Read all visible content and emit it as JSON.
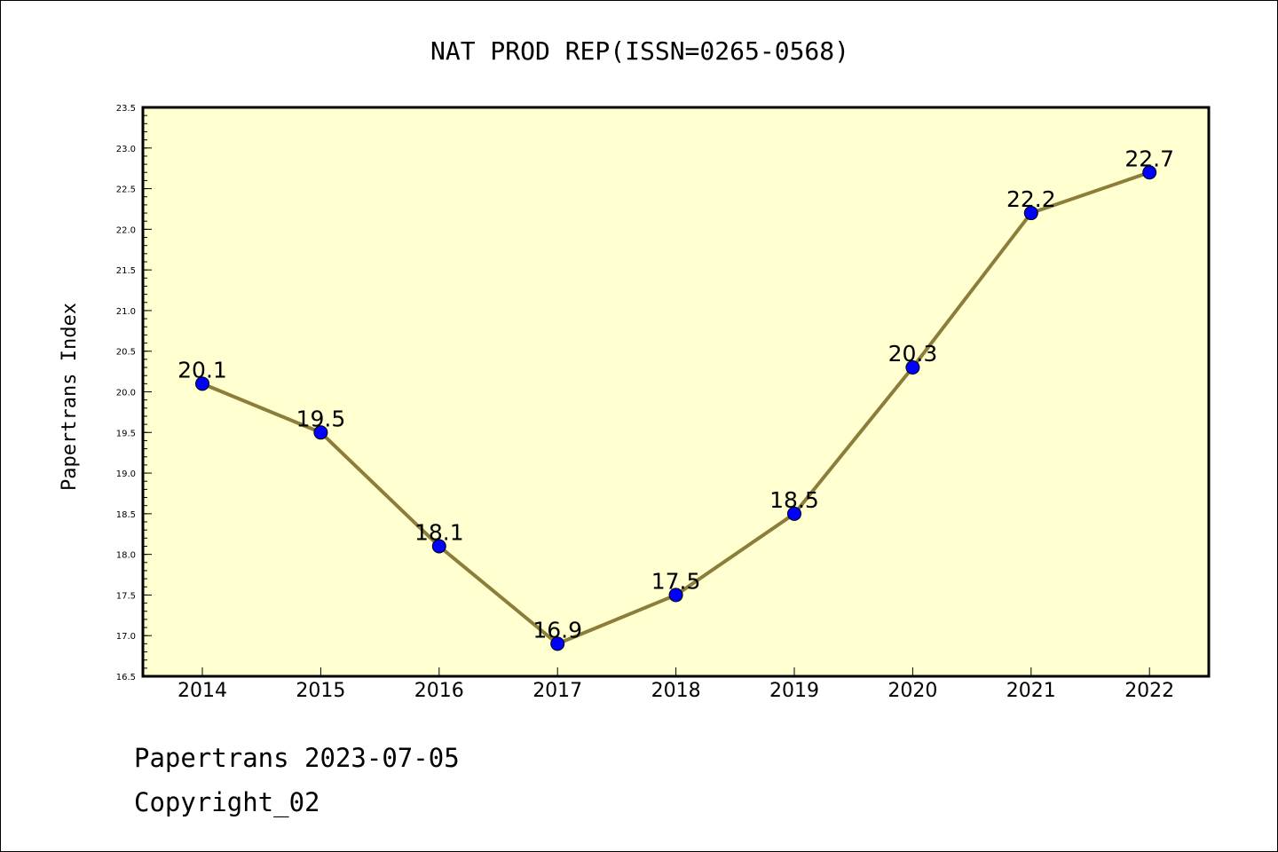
{
  "chart_data": {
    "type": "line",
    "title": "NAT PROD REP(ISSN=0265-0568)",
    "xlabel": "",
    "ylabel": "Papertrans Index",
    "categories": [
      "2014",
      "2015",
      "2016",
      "2017",
      "2018",
      "2019",
      "2020",
      "2021",
      "2022"
    ],
    "values": [
      20.1,
      19.5,
      18.1,
      16.9,
      17.5,
      18.5,
      20.3,
      22.2,
      22.7
    ],
    "data_labels": [
      "20.1",
      "19.5",
      "18.1",
      "16.9",
      "17.5",
      "18.5",
      "20.3",
      "22.2",
      "22.7"
    ],
    "ylim": [
      16.5,
      23.5
    ],
    "yticks": [
      "16.5",
      "17.0",
      "17.5",
      "18.0",
      "18.5",
      "19.0",
      "19.5",
      "20.0",
      "20.5",
      "21.0",
      "21.5",
      "22.0",
      "22.5",
      "23.0",
      "23.5"
    ],
    "grid": false,
    "legend": "none",
    "colors": {
      "plot_background": "#ffffd0",
      "line": "#8b7d3a",
      "marker": "#0000ff"
    }
  },
  "footer": {
    "line1": "Papertrans 2023-07-05",
    "line2": "Copyright_02"
  }
}
